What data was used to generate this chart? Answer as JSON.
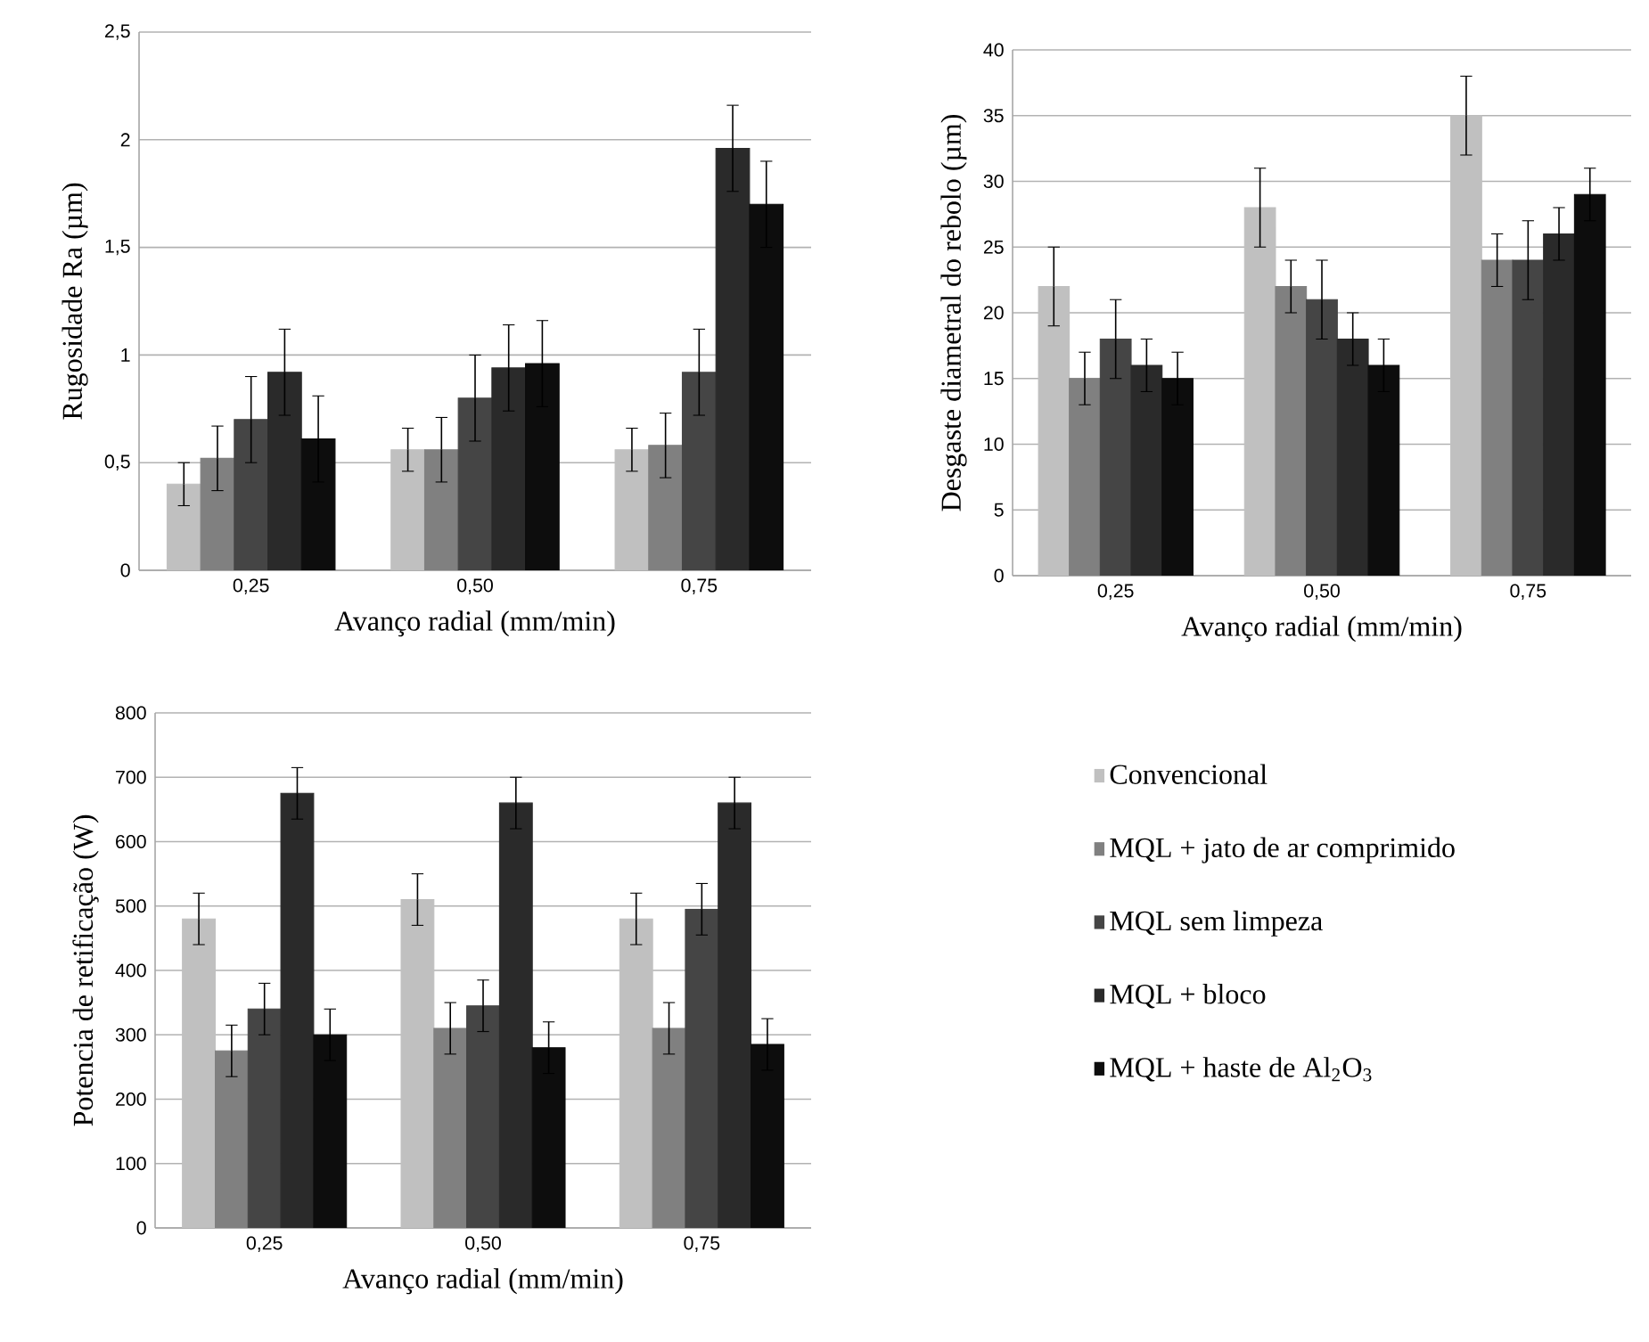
{
  "chart_data": [
    {
      "type": "bar",
      "xlabel": "Avanço radial (mm/min)",
      "ylabel": "Rugosidade Ra (µm)",
      "categories": [
        "0,25",
        "0,50",
        "0,75"
      ],
      "ylim": [
        0,
        2.5
      ],
      "yticks": [
        0,
        {
          "value": 0.5,
          "label": "0,5"
        },
        1,
        {
          "value": 1.5,
          "label": "1,5"
        },
        2,
        {
          "value": 2.5,
          "label": "2,5"
        }
      ],
      "grid": "y",
      "series": [
        {
          "color": "#c0c0c0",
          "values": [
            0.4,
            0.56,
            0.56
          ],
          "errors": [
            0.1,
            0.1,
            0.1
          ]
        },
        {
          "color": "#808080",
          "values": [
            0.52,
            0.56,
            0.58
          ],
          "errors": [
            0.15,
            0.15,
            0.15
          ]
        },
        {
          "color": "#454545",
          "values": [
            0.7,
            0.8,
            0.92
          ],
          "errors": [
            0.2,
            0.2,
            0.2
          ]
        },
        {
          "color": "#2a2a2a",
          "values": [
            0.92,
            0.94,
            1.96
          ],
          "errors": [
            0.2,
            0.2,
            0.2
          ]
        },
        {
          "color": "#0d0d0d",
          "values": [
            0.61,
            0.96,
            1.7
          ],
          "errors": [
            0.2,
            0.2,
            0.2
          ]
        }
      ]
    },
    {
      "type": "bar",
      "xlabel": "Avanço radial (mm/min)",
      "ylabel": "Desgaste diametral do rebolo (µm)",
      "categories": [
        "0,25",
        "0,50",
        "0,75"
      ],
      "ylim": [
        0,
        40
      ],
      "yticks": [
        0,
        5,
        10,
        15,
        20,
        25,
        30,
        35,
        40
      ],
      "grid": "y",
      "series": [
        {
          "color": "#c0c0c0",
          "values": [
            22,
            28,
            35
          ],
          "errors": [
            3,
            3,
            3
          ]
        },
        {
          "color": "#808080",
          "values": [
            15,
            22,
            24
          ],
          "errors": [
            2,
            2,
            2
          ]
        },
        {
          "color": "#454545",
          "values": [
            18,
            21,
            24
          ],
          "errors": [
            3,
            3,
            3
          ]
        },
        {
          "color": "#2a2a2a",
          "values": [
            16,
            18,
            26
          ],
          "errors": [
            2,
            2,
            2
          ]
        },
        {
          "color": "#0d0d0d",
          "values": [
            15,
            16,
            29
          ],
          "errors": [
            2,
            2,
            2
          ]
        }
      ]
    },
    {
      "type": "bar",
      "xlabel": "Avanço radial (mm/min)",
      "ylabel": "Potencia de retificação (W)",
      "categories": [
        "0,25",
        "0,50",
        "0,75"
      ],
      "ylim": [
        0,
        800
      ],
      "yticks": [
        0,
        100,
        200,
        300,
        400,
        500,
        600,
        700,
        800
      ],
      "grid": "y",
      "legend": "right",
      "series": [
        {
          "name": "Convencional",
          "color": "#c0c0c0",
          "values": [
            480,
            510,
            480
          ],
          "errors": [
            40,
            40,
            40
          ]
        },
        {
          "name": "MQL + jato de ar comprimido",
          "color": "#808080",
          "values": [
            275,
            310,
            310
          ],
          "errors": [
            40,
            40,
            40
          ]
        },
        {
          "name": "MQL sem limpeza",
          "color": "#454545",
          "values": [
            340,
            345,
            495
          ],
          "errors": [
            40,
            40,
            40
          ]
        },
        {
          "name": "MQL + bloco",
          "color": "#2a2a2a",
          "values": [
            675,
            660,
            660
          ],
          "errors": [
            40,
            40,
            40
          ]
        },
        {
          "name": "MQL + haste de Al$_{2}$O$_{3}$",
          "color": "#0d0d0d",
          "values": [
            300,
            280,
            285
          ],
          "errors": [
            40,
            40,
            40
          ]
        }
      ]
    }
  ]
}
